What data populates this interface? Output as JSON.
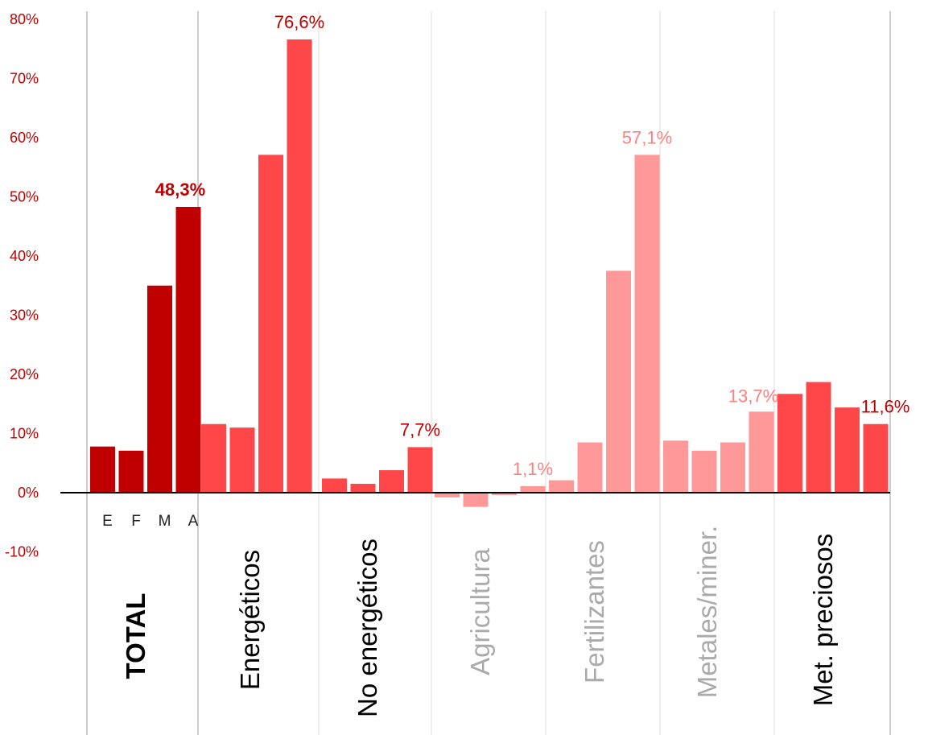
{
  "chart_data": {
    "type": "bar",
    "ylim": [
      -10,
      80
    ],
    "yticks": [
      "80%",
      "70%",
      "60%",
      "50%",
      "40%",
      "30%",
      "20%",
      "10%",
      "0%",
      "-10%"
    ],
    "month_labels": [
      "E",
      "F",
      "M",
      "A"
    ],
    "groups": [
      {
        "name": "TOTAL",
        "color": "#C00000",
        "label_color": "#000000",
        "label_bold": true,
        "values": [
          7.8,
          7.1,
          35.0,
          48.3
        ],
        "data_label": "48,3%",
        "data_label_color": "#C00000",
        "data_label_bold": true
      },
      {
        "name": "Energéticos",
        "color": "#FF474A",
        "label_color": "#000000",
        "label_bold": false,
        "values": [
          11.6,
          11.0,
          57.1,
          76.6
        ],
        "data_label": "76,6%",
        "data_label_color": "#C00000",
        "data_label_bold": false
      },
      {
        "name": "No energéticos",
        "color": "#FF474A",
        "label_color": "#000000",
        "label_bold": false,
        "values": [
          2.4,
          1.5,
          3.8,
          7.7
        ],
        "data_label": "7,7%",
        "data_label_color": "#C00000",
        "data_label_bold": false
      },
      {
        "name": "Agricultura",
        "color": "#FF9999",
        "label_color": "#AAAAAA",
        "label_bold": false,
        "values": [
          -0.8,
          -2.4,
          -0.4,
          1.1
        ],
        "data_label": "1,1%",
        "data_label_color": "#FF8080",
        "data_label_bold": false
      },
      {
        "name": "Fertilizantes",
        "color": "#FF9999",
        "label_color": "#AAAAAA",
        "label_bold": false,
        "values": [
          2.1,
          8.5,
          37.5,
          57.1
        ],
        "data_label": "57,1%",
        "data_label_color": "#FF8080",
        "data_label_bold": false
      },
      {
        "name": "Metales/miner.",
        "color": "#FF9999",
        "label_color": "#AAAAAA",
        "label_bold": false,
        "values": [
          8.8,
          7.1,
          8.5,
          13.7
        ],
        "data_label": "13,7%",
        "data_label_color": "#FF8080",
        "data_label_bold": false
      },
      {
        "name": "Met. preciosos",
        "color": "#FF474A",
        "label_color": "#000000",
        "label_bold": false,
        "values": [
          16.7,
          18.7,
          14.4,
          11.6
        ],
        "data_label": "11,6%",
        "data_label_color": "#C00000",
        "data_label_bold": false
      }
    ]
  }
}
